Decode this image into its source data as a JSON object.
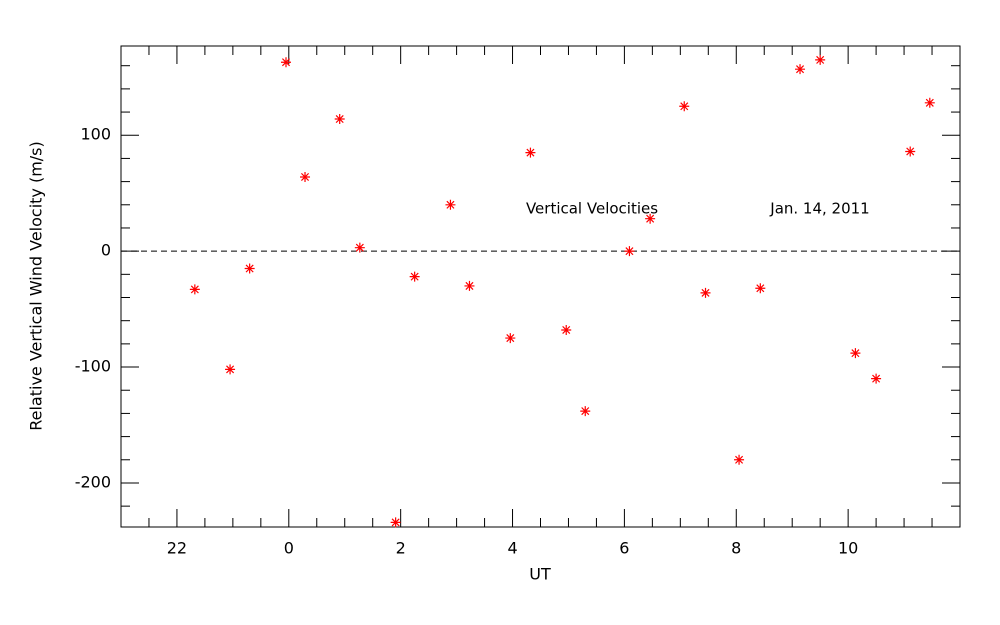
{
  "chart_data": {
    "type": "scatter",
    "ylabel": "Relative Vertical Wind Velocity (m/s)",
    "xlabel": "UT",
    "annotations": [
      "Vertical Velocities",
      "Jan. 14, 2011"
    ],
    "color": "#ff0000",
    "marker": "asterisk",
    "hline": 0,
    "xlim": [
      -3,
      12
    ],
    "ylim": [
      -238,
      177
    ],
    "xticks": [
      {
        "value": -2,
        "label": "22"
      },
      0,
      2,
      4,
      6,
      8,
      10
    ],
    "yticks": [
      -200,
      -100,
      0,
      100
    ],
    "xminorticks": [
      -2.5,
      -1.5,
      -1,
      -0.5,
      0.5,
      1,
      1.5,
      2.5,
      3,
      3.5,
      4.5,
      5,
      5.5,
      6.5,
      7,
      7.5,
      8.5,
      9,
      9.5,
      10.5,
      11,
      11.5
    ],
    "yminorticks": [
      -220,
      -180,
      -160,
      -140,
      -120,
      -80,
      -60,
      -40,
      -20,
      20,
      40,
      60,
      80,
      120,
      140,
      160
    ],
    "x": [
      -1.68,
      -1.05,
      -0.7,
      -0.05,
      0.29,
      0.91,
      1.27,
      1.91,
      2.25,
      2.89,
      3.23,
      3.96,
      4.32,
      4.96,
      5.3,
      6.09,
      6.46,
      7.07,
      7.45,
      8.05,
      8.43,
      9.14,
      9.5,
      10.13,
      10.5,
      11.11,
      11.46
    ],
    "values": [
      -33,
      -102,
      -15,
      163,
      64,
      114,
      3,
      -234,
      -22,
      40,
      -30,
      -75,
      85,
      -68,
      -138,
      0,
      28,
      125,
      -36,
      -180,
      -32,
      157,
      165,
      -88,
      -110,
      86,
      128
    ]
  }
}
